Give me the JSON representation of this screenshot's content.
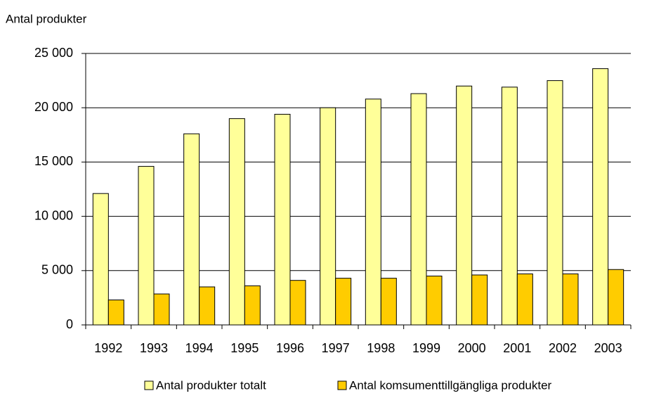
{
  "chart_data": {
    "type": "bar",
    "ylabel": "Antal produkter",
    "categories": [
      "1992",
      "1993",
      "1994",
      "1995",
      "1996",
      "1997",
      "1998",
      "1999",
      "2000",
      "2001",
      "2002",
      "2003"
    ],
    "series": [
      {
        "name": "Antal produkter totalt",
        "color": "#ffff99",
        "values": [
          12100,
          14600,
          17600,
          19000,
          19400,
          20000,
          20800,
          21300,
          22000,
          21900,
          22500,
          23600
        ]
      },
      {
        "name": "Antal komsumenttillgängliga produkter",
        "color": "#ffcc00",
        "values": [
          2300,
          2850,
          3500,
          3600,
          4100,
          4300,
          4300,
          4500,
          4600,
          4700,
          4700,
          5100
        ]
      }
    ],
    "ylim": [
      0,
      25000
    ],
    "yticks": [
      0,
      {
        "value": 5000,
        "label": "5 000"
      },
      {
        "value": 10000,
        "label": "10 000"
      },
      {
        "value": 15000,
        "label": "15 000"
      },
      {
        "value": 20000,
        "label": "20 000"
      },
      {
        "value": 25000,
        "label": "25 000"
      }
    ],
    "grid": true,
    "legend": "bottom"
  }
}
